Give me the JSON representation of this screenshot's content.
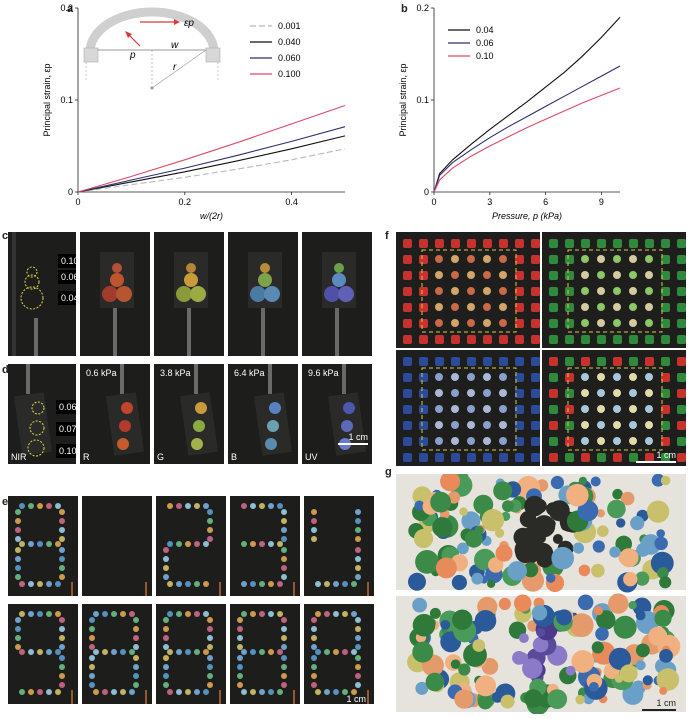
{
  "panels": {
    "a": "a",
    "b": "b",
    "c": "c",
    "d": "d",
    "e": "e",
    "f": "f",
    "g": "g"
  },
  "chart_data": [
    {
      "type": "line",
      "panel": "a",
      "xlabel": "w/(2r)",
      "ylabel": "Principal strain, εp",
      "xlim": [
        0,
        0.5
      ],
      "ylim": [
        0,
        0.2
      ],
      "xticks": [
        "0",
        "0.2",
        "0.4"
      ],
      "yticks": [
        "0",
        "0.1",
        "0.2"
      ],
      "legend_position": "top-right",
      "x": [
        0,
        0.1,
        0.2,
        0.3,
        0.4,
        0.5
      ],
      "series": [
        {
          "name": "0.001",
          "color": "#b8b8b8",
          "dashed": true,
          "values": [
            0,
            0.008,
            0.016,
            0.025,
            0.035,
            0.047
          ]
        },
        {
          "name": "0.040",
          "color": "#111111",
          "values": [
            0,
            0.011,
            0.022,
            0.034,
            0.047,
            0.061
          ]
        },
        {
          "name": "0.060",
          "color": "#2a2f6e",
          "values": [
            0,
            0.013,
            0.026,
            0.04,
            0.055,
            0.071
          ]
        },
        {
          "name": "0.100",
          "color": "#dc4a66",
          "values": [
            0,
            0.017,
            0.035,
            0.054,
            0.074,
            0.094
          ]
        }
      ],
      "inset_labels": {
        "strain": "εp",
        "p": "p",
        "w": "w",
        "r": "r"
      }
    },
    {
      "type": "line",
      "panel": "b",
      "xlabel": "Pressure, p (kPa)",
      "ylabel": "Principal strain, εp",
      "xlim": [
        0,
        10
      ],
      "ylim": [
        0,
        0.2
      ],
      "xticks": [
        "0",
        "3",
        "6",
        "9"
      ],
      "yticks": [
        "0",
        "0.1",
        "0.2"
      ],
      "legend_position": "top-left",
      "x": [
        0,
        0.3,
        1,
        2,
        3,
        4,
        5,
        6,
        7,
        8,
        9,
        10
      ],
      "series": [
        {
          "name": "0.04",
          "color": "#111111",
          "values": [
            0,
            0.02,
            0.035,
            0.052,
            0.068,
            0.083,
            0.098,
            0.114,
            0.13,
            0.148,
            0.168,
            0.19
          ]
        },
        {
          "name": "0.06",
          "color": "#2a2f6e",
          "values": [
            0,
            0.018,
            0.032,
            0.046,
            0.059,
            0.071,
            0.082,
            0.093,
            0.104,
            0.115,
            0.126,
            0.137
          ]
        },
        {
          "name": "0.10",
          "color": "#dc4a66",
          "values": [
            0,
            0.013,
            0.026,
            0.039,
            0.05,
            0.06,
            0.07,
            0.079,
            0.088,
            0.097,
            0.105,
            0.113
          ]
        }
      ]
    }
  ],
  "panel_c": {
    "thickness_labels": [
      "0.10",
      "0.06",
      "0.04"
    ]
  },
  "panel_d": {
    "thickness_labels": [
      "0.060",
      "0.075",
      "0.100"
    ],
    "pressures": [
      "0.6 kPa",
      "3.8 kPa",
      "6.4 kPa",
      "9.6 kPa"
    ],
    "bands": [
      "NIR",
      "R",
      "G",
      "B",
      "UV"
    ],
    "scale_bar": "1 cm"
  },
  "panel_e": {
    "scale_bar": "1 cm"
  },
  "panel_f": {
    "scale_bar": "1 cm",
    "colors": {
      "red": "#c8322e",
      "green": "#2f8a3c",
      "blue": "#2c4a9a"
    }
  },
  "panel_g": {
    "scale_bar": "1 cm"
  },
  "photo_colors": {
    "background": "#1d1d1b",
    "highlight_yellow": "#e8d548"
  }
}
